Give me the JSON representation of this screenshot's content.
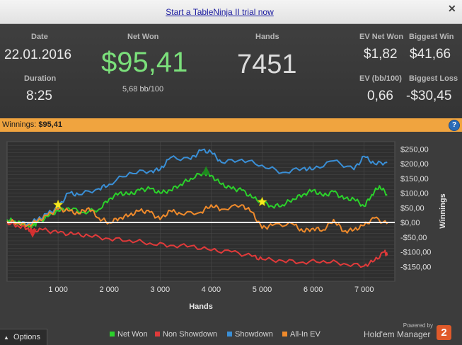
{
  "topbar": {
    "trial_link": "Start a TableNinja II trial now",
    "close_glyph": "✕"
  },
  "stats": {
    "date_label": "Date",
    "date_value": "22.01.2016",
    "duration_label": "Duration",
    "duration_value": "8:25",
    "net_won_label": "Net Won",
    "net_won_value": "$95,41",
    "bb_per_100": "5,68 bb/100",
    "hands_label": "Hands",
    "hands_value": "7451",
    "ev_net_won_label": "EV Net Won",
    "ev_net_won_value": "$1,82",
    "ev_bb_label": "EV (bb/100)",
    "ev_bb_value": "0,66",
    "biggest_win_label": "Biggest Win",
    "biggest_win_value": "$41,66",
    "biggest_loss_label": "Biggest Loss",
    "biggest_loss_value": "-$30,45"
  },
  "winnings_bar": {
    "label": "Winnings:",
    "value": "$95,41",
    "help_glyph": "?"
  },
  "chart_data": {
    "type": "line",
    "xlabel": "Hands",
    "ylabel": "Winnings",
    "xlim": [
      0,
      7600
    ],
    "ylim": [
      -200,
      275
    ],
    "x_ticks": [
      1000,
      2000,
      3000,
      4000,
      5000,
      6000,
      7000
    ],
    "x_tick_labels": [
      "1 000",
      "2 000",
      "3 000",
      "4 000",
      "5 000",
      "6 000",
      "7 000"
    ],
    "y_ticks": [
      250,
      200,
      150,
      100,
      50,
      0,
      -50,
      -100,
      -150
    ],
    "y_tick_labels": [
      "$250,00",
      "$200,00",
      "$150,00",
      "$100,00",
      "$50,00",
      "$0,00",
      "-$50,00",
      "-$100,00",
      "-$150,00"
    ],
    "series": [
      {
        "name": "Net Won",
        "color": "#2bd12b",
        "x": [
          0,
          150,
          300,
          450,
          520,
          600,
          800,
          1000,
          1200,
          1500,
          1800,
          2000,
          2200,
          2400,
          2600,
          2800,
          3000,
          3200,
          3400,
          3600,
          3850,
          4000,
          4200,
          4400,
          4600,
          4800,
          5000,
          5200,
          5400,
          5600,
          5800,
          6000,
          6200,
          6400,
          6600,
          6800,
          7000,
          7150,
          7300,
          7451
        ],
        "y": [
          10,
          5,
          -5,
          -15,
          -10,
          0,
          20,
          40,
          50,
          35,
          45,
          80,
          100,
          95,
          110,
          115,
          100,
          110,
          130,
          150,
          170,
          160,
          130,
          115,
          110,
          85,
          70,
          55,
          60,
          80,
          95,
          110,
          90,
          105,
          80,
          80,
          55,
          95,
          125,
          95
        ]
      },
      {
        "name": "Non Showdown",
        "color": "#e03a3a",
        "x": [
          0,
          200,
          400,
          500,
          700,
          1000,
          1300,
          1600,
          2000,
          2400,
          2800,
          3200,
          3600,
          4000,
          4400,
          4800,
          5000,
          5400,
          5800,
          6200,
          6600,
          7000,
          7200,
          7400,
          7451
        ],
        "y": [
          0,
          -10,
          -20,
          -28,
          -25,
          -35,
          -40,
          -45,
          -55,
          -60,
          -70,
          -78,
          -80,
          -95,
          -100,
          -115,
          -125,
          -130,
          -135,
          -130,
          -140,
          -148,
          -130,
          -100,
          -112
        ]
      },
      {
        "name": "Showdown",
        "color": "#3a8fd6",
        "x": [
          0,
          200,
          400,
          600,
          800,
          1000,
          1200,
          1400,
          1800,
          2000,
          2400,
          2800,
          3000,
          3200,
          3600,
          3800,
          4000,
          4200,
          4600,
          5000,
          5400,
          5800,
          6000,
          6400,
          6800,
          7000,
          7200,
          7451
        ],
        "y": [
          5,
          0,
          -5,
          10,
          30,
          50,
          100,
          95,
          115,
          130,
          170,
          175,
          180,
          220,
          215,
          245,
          240,
          205,
          215,
          195,
          170,
          185,
          180,
          210,
          180,
          225,
          200,
          205
        ]
      },
      {
        "name": "All-In EV",
        "color": "#ef8a2b",
        "x": [
          0,
          200,
          400,
          600,
          800,
          1000,
          1200,
          1400,
          1600,
          1800,
          2000,
          2200,
          2400,
          2600,
          2800,
          3000,
          3200,
          3400,
          3800,
          4000,
          4200,
          4600,
          4800,
          5000,
          5200,
          5600,
          5800,
          6000,
          6200,
          6400,
          6600,
          6800,
          7000,
          7200,
          7451
        ],
        "y": [
          5,
          0,
          -10,
          5,
          25,
          45,
          40,
          30,
          50,
          15,
          0,
          15,
          25,
          40,
          35,
          10,
          40,
          30,
          35,
          60,
          45,
          60,
          35,
          -20,
          -10,
          -5,
          -30,
          -20,
          -25,
          10,
          -30,
          -25,
          -10,
          15,
          -5
        ]
      }
    ],
    "markers": [
      {
        "shape": "star",
        "color": "#f7e91f",
        "x": 1000,
        "y": 60
      },
      {
        "shape": "star",
        "color": "#f7e91f",
        "x": 5000,
        "y": 70
      },
      {
        "shape": "triangle-up",
        "color": "#1e8a1e",
        "x": 3900,
        "y": 175
      },
      {
        "shape": "triangle-down",
        "color": "#d43030",
        "x": 500,
        "y": -35
      }
    ],
    "grid": true,
    "zero_line": true,
    "legend": "bottom"
  },
  "legend": [
    {
      "label": "Net Won",
      "color": "#2bd12b"
    },
    {
      "label": "Non Showdown",
      "color": "#e03a3a"
    },
    {
      "label": "Showdown",
      "color": "#3a8fd6"
    },
    {
      "label": "All-In EV",
      "color": "#ef8a2b"
    }
  ],
  "footer": {
    "options_label": "Options",
    "options_glyph": "▲",
    "powered_by": "Powered by",
    "brand_text": "Hold'em Manager",
    "brand_logo_text": "2"
  }
}
